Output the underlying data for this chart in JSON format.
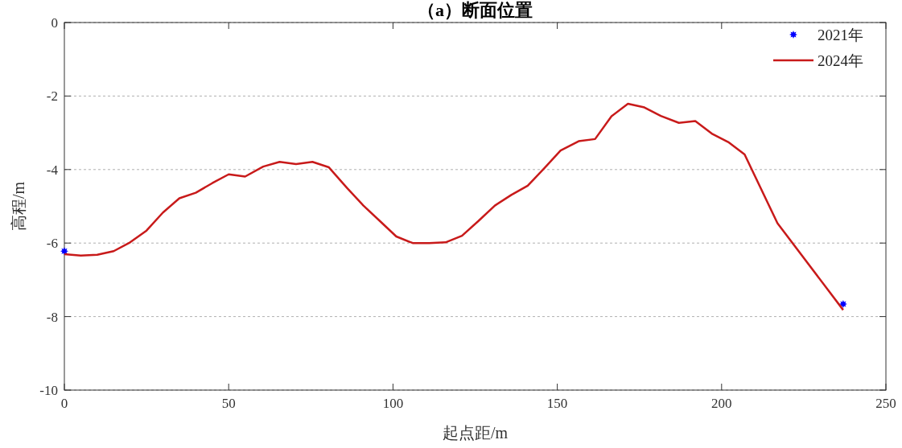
{
  "chart_data": {
    "type": "line",
    "title": "（a）断面位置",
    "xlabel": "起点距/m",
    "ylabel": "高程/m",
    "xlim": [
      0,
      250
    ],
    "xticks": [
      0,
      50,
      100,
      150,
      200,
      250
    ],
    "ylim": [
      -10,
      0
    ],
    "yticks": [
      -10,
      -8,
      -6,
      -4,
      -2,
      0
    ],
    "grid": "y",
    "legend": "top right",
    "series": [
      {
        "name": "2021年",
        "type": "scatter",
        "marker": "star",
        "color": "#0000ff",
        "x": [
          0,
          237
        ],
        "values": [
          -6.22,
          -7.66
        ]
      },
      {
        "name": "2024年",
        "marker": "none",
        "line_style": "solid",
        "color": "#c81a1a",
        "x": [
          0,
          5,
          10,
          15,
          20,
          25,
          30,
          35,
          40,
          45,
          50,
          55,
          60.5,
          65.5,
          70.5,
          75.5,
          80.5,
          86,
          91,
          96,
          101,
          106,
          111,
          116,
          121,
          126,
          131,
          136,
          141,
          146,
          151,
          156.5,
          161.5,
          166.5,
          171.5,
          176.5,
          181.5,
          187,
          192,
          197,
          202,
          207,
          217,
          237
        ],
        "values": [
          -6.3,
          -6.34,
          -6.32,
          -6.22,
          -5.98,
          -5.66,
          -5.17,
          -4.78,
          -4.63,
          -4.37,
          -4.13,
          -4.19,
          -3.92,
          -3.79,
          -3.85,
          -3.79,
          -3.94,
          -4.5,
          -4.98,
          -5.4,
          -5.82,
          -6.0,
          -6.0,
          -5.98,
          -5.8,
          -5.4,
          -4.98,
          -4.69,
          -4.44,
          -3.97,
          -3.48,
          -3.23,
          -3.17,
          -2.55,
          -2.21,
          -2.31,
          -2.54,
          -2.73,
          -2.68,
          -3.02,
          -3.25,
          -3.59,
          -5.46,
          -7.82
        ]
      }
    ]
  }
}
